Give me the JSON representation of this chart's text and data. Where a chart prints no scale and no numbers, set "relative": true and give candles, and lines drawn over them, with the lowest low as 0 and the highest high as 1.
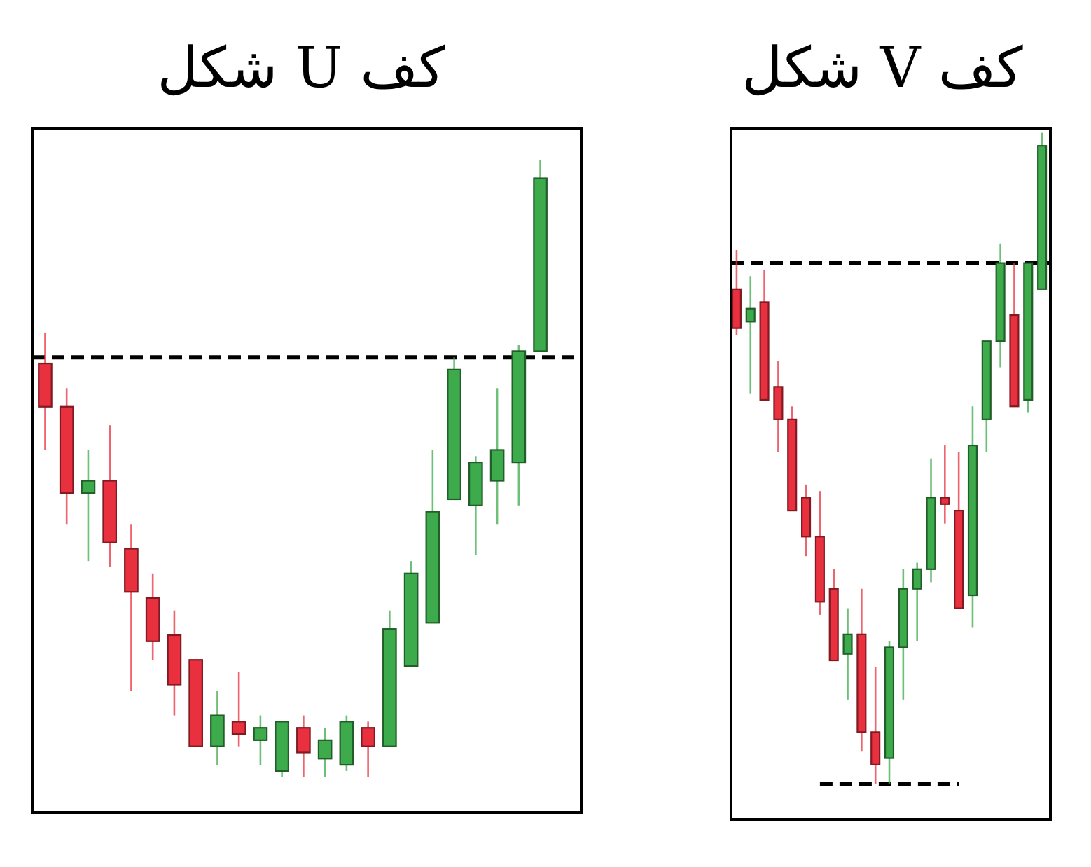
{
  "chart_data": [
    {
      "type": "candlestick",
      "title": "کف U شکل",
      "relative": true,
      "categories": [
        null,
        null,
        null,
        null,
        null,
        null,
        null,
        null,
        null,
        null,
        null,
        null,
        null,
        null,
        null,
        null,
        null,
        null,
        null,
        null,
        null,
        null,
        null,
        null
      ],
      "ohlc": [
        [
          0.67,
          0.72,
          0.53,
          0.6
        ],
        [
          0.6,
          0.63,
          0.41,
          0.46
        ],
        [
          0.46,
          0.53,
          0.35,
          0.48
        ],
        [
          0.48,
          0.57,
          0.34,
          0.38
        ],
        [
          0.37,
          0.41,
          0.14,
          0.3
        ],
        [
          0.29,
          0.33,
          0.19,
          0.22
        ],
        [
          0.23,
          0.27,
          0.1,
          0.15
        ],
        [
          0.19,
          0.19,
          0.05,
          0.05
        ],
        [
          0.05,
          0.14,
          0.02,
          0.1
        ],
        [
          0.09,
          0.17,
          0.05,
          0.07
        ],
        [
          0.06,
          0.1,
          0.02,
          0.08
        ],
        [
          0.01,
          0.09,
          0.0,
          0.09
        ],
        [
          0.08,
          0.1,
          0.0,
          0.04
        ],
        [
          0.03,
          0.08,
          0.0,
          0.06
        ],
        [
          0.02,
          0.1,
          0.01,
          0.09
        ],
        [
          0.08,
          0.09,
          0.0,
          0.05
        ],
        [
          0.05,
          0.27,
          0.05,
          0.24
        ],
        [
          0.18,
          0.35,
          0.18,
          0.33
        ],
        [
          0.25,
          0.53,
          0.25,
          0.43
        ],
        [
          0.45,
          0.68,
          0.45,
          0.66
        ],
        [
          0.44,
          0.52,
          0.36,
          0.51
        ],
        [
          0.48,
          0.63,
          0.41,
          0.53
        ],
        [
          0.51,
          0.7,
          0.44,
          0.69
        ],
        [
          0.69,
          1,
          0.69,
          0.97
        ]
      ],
      "colors": [
        "#e8303f",
        "#e8303f",
        "#3daa4b",
        "#e8303f",
        "#e8303f",
        "#e8303f",
        "#e8303f",
        "#e8303f",
        "#3daa4b",
        "#e8303f",
        "#3daa4b",
        "#3daa4b",
        "#e8303f",
        "#3daa4b",
        "#3daa4b",
        "#e8303f",
        "#3daa4b",
        "#3daa4b",
        "#3daa4b",
        "#3daa4b",
        "#3daa4b",
        "#3daa4b",
        "#3daa4b",
        "#3daa4b"
      ],
      "ref_lines": [
        {
          "axis": "y",
          "value": 0.68,
          "color": "#000000",
          "line_style": "dashed"
        }
      ]
    },
    {
      "type": "candlestick",
      "title": "کف V شکل",
      "relative": true,
      "categories": [
        null,
        null,
        null,
        null,
        null,
        null,
        null,
        null,
        null,
        null,
        null,
        null,
        null,
        null,
        null,
        null,
        null,
        null,
        null,
        null,
        null,
        null,
        null
      ],
      "ohlc": [
        [
          0.76,
          0.82,
          0.69,
          0.7
        ],
        [
          0.71,
          0.78,
          0.6,
          0.73
        ],
        [
          0.74,
          0.79,
          0.59,
          0.59
        ],
        [
          0.61,
          0.65,
          0.51,
          0.56
        ],
        [
          0.56,
          0.58,
          0.42,
          0.42
        ],
        [
          0.44,
          0.46,
          0.35,
          0.38
        ],
        [
          0.38,
          0.45,
          0.26,
          0.28
        ],
        [
          0.3,
          0.33,
          0.19,
          0.19
        ],
        [
          0.2,
          0.27,
          0.13,
          0.23
        ],
        [
          0.23,
          0.3,
          0.05,
          0.08
        ],
        [
          0.08,
          0.18,
          0.0,
          0.03
        ],
        [
          0.04,
          0.22,
          0.0,
          0.21
        ],
        [
          0.21,
          0.33,
          0.13,
          0.3
        ],
        [
          0.3,
          0.34,
          0.22,
          0.33
        ],
        [
          0.33,
          0.5,
          0.31,
          0.44
        ],
        [
          0.44,
          0.52,
          0.4,
          0.43
        ],
        [
          0.42,
          0.51,
          0.27,
          0.27
        ],
        [
          0.29,
          0.58,
          0.24,
          0.52
        ],
        [
          0.56,
          0.68,
          0.51,
          0.68
        ],
        [
          0.68,
          0.83,
          0.64,
          0.8
        ],
        [
          0.72,
          0.8,
          0.58,
          0.58
        ],
        [
          0.59,
          0.8,
          0.57,
          0.8
        ],
        [
          0.76,
          1,
          0.76,
          0.98
        ]
      ],
      "colors": [
        "#e8303f",
        "#3daa4b",
        "#e8303f",
        "#e8303f",
        "#e8303f",
        "#e8303f",
        "#e8303f",
        "#e8303f",
        "#3daa4b",
        "#e8303f",
        "#e8303f",
        "#3daa4b",
        "#3daa4b",
        "#3daa4b",
        "#3daa4b",
        "#e8303f",
        "#e8303f",
        "#3daa4b",
        "#3daa4b",
        "#3daa4b",
        "#e8303f",
        "#3daa4b",
        "#3daa4b"
      ],
      "ref_lines": [
        {
          "axis": "y",
          "value": 0.8,
          "color": "#000000",
          "line_style": "dashed"
        }
      ],
      "series": [
        {
          "type": "line",
          "values": [
            null,
            null,
            null,
            null,
            null,
            null,
            0,
            0,
            0,
            0,
            0,
            0,
            0,
            0,
            0,
            0,
            0,
            null,
            null,
            null,
            null,
            null,
            null
          ],
          "color": "#000000",
          "line_style": "dashed"
        }
      ]
    }
  ]
}
